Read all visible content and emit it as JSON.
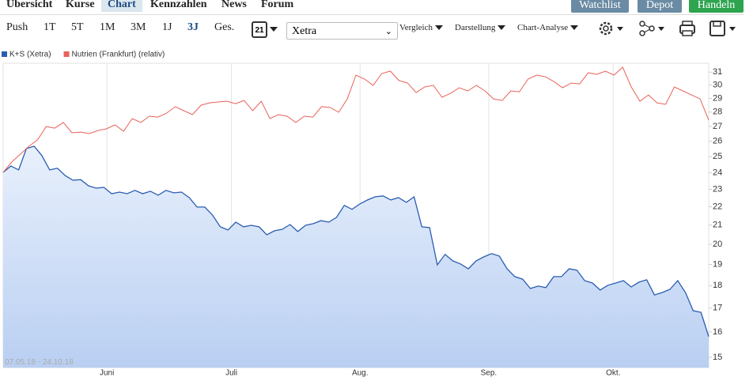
{
  "nav": {
    "tabs": [
      "Übersicht",
      "Kurse",
      "Chart",
      "Kennzahlen",
      "News",
      "Forum"
    ],
    "buttons": [
      "Watchlist",
      "Depot",
      "Handeln"
    ]
  },
  "toolbar": {
    "periods": [
      "Push",
      "1T",
      "5T",
      "1M",
      "3M",
      "1J",
      "3J",
      "Ges."
    ],
    "calendar": "21",
    "exchange": "Xetra",
    "menus": [
      "Vergleich",
      "Darstellung",
      "Chart-Analyse"
    ]
  },
  "chart_data": {
    "type": "line",
    "log": true,
    "grid": true,
    "xlim": [
      "07.05.18",
      "24.10.18"
    ],
    "xticks": [
      {
        "value": "01.06.18",
        "label": "Juni"
      },
      {
        "value": "01.07.18",
        "label": "Juli"
      },
      {
        "value": "01.08.18",
        "label": "Aug."
      },
      {
        "value": "01.09.18",
        "label": "Sep."
      },
      {
        "value": "01.10.18",
        "label": "Okt."
      }
    ],
    "ylim": [
      14.61,
      31.71
    ],
    "yticks": [
      15,
      16,
      17,
      18,
      19,
      20,
      21,
      22,
      23,
      24,
      25,
      26,
      27,
      28,
      29,
      30,
      31
    ],
    "series": [
      {
        "name": "K+S (Xetra)",
        "color": "#2a5db0",
        "area": true,
        "values": [
          24.02,
          24.41,
          24.17,
          25.52,
          25.67,
          25.06,
          24.17,
          24.27,
          23.82,
          23.54,
          23.58,
          23.21,
          23.07,
          23.12,
          22.75,
          22.84,
          22.75,
          22.94,
          22.75,
          22.89,
          22.66,
          22.94,
          22.8,
          22.84,
          22.52,
          21.99,
          21.99,
          21.54,
          20.91,
          20.74,
          21.16,
          20.91,
          20.99,
          20.91,
          20.49,
          20.7,
          20.78,
          21.03,
          20.66,
          20.99,
          21.08,
          21.24,
          21.16,
          21.42,
          22.08,
          21.86,
          22.16,
          22.39,
          22.57,
          22.62,
          22.39,
          22.52,
          22.25,
          22.57,
          20.91,
          20.87,
          18.98,
          19.49,
          19.17,
          19.02,
          18.79,
          19.17,
          19.37,
          19.53,
          19.41,
          18.79,
          18.42,
          18.3,
          17.87,
          17.98,
          17.91,
          18.42,
          18.42,
          18.79,
          18.72,
          18.23,
          18.12,
          17.8,
          18.02,
          18.12,
          18.23,
          17.94,
          18.16,
          18.27,
          17.58,
          17.69,
          17.83,
          18.23,
          17.69,
          16.89,
          16.82,
          15.81
        ]
      },
      {
        "name": "Nutrien (Frankfurt) (relativ)",
        "color": "#e8625a",
        "area": false,
        "values": [
          24.02,
          24.66,
          25.16,
          25.67,
          26.09,
          26.99,
          26.88,
          27.27,
          26.56,
          26.61,
          26.51,
          26.72,
          26.83,
          27.1,
          26.67,
          27.54,
          27.27,
          27.71,
          27.65,
          27.93,
          28.39,
          28.1,
          27.82,
          28.5,
          28.67,
          28.73,
          28.79,
          28.61,
          28.84,
          28.1,
          28.79,
          27.54,
          27.82,
          27.71,
          27.27,
          27.71,
          27.65,
          28.39,
          28.33,
          27.99,
          28.96,
          30.77,
          30.46,
          29.97,
          30.89,
          31.08,
          30.34,
          30.15,
          29.43,
          29.85,
          29.97,
          29.08,
          29.37,
          29.79,
          29.55,
          29.97,
          29.55,
          28.96,
          28.84,
          29.55,
          29.49,
          30.46,
          30.77,
          30.64,
          30.27,
          29.79,
          30.15,
          30.09,
          30.95,
          30.83,
          31.08,
          30.77,
          31.39,
          29.85,
          28.79,
          29.25,
          28.67,
          28.56,
          29.85,
          29.55,
          29.25,
          28.96,
          27.43
        ]
      }
    ]
  }
}
